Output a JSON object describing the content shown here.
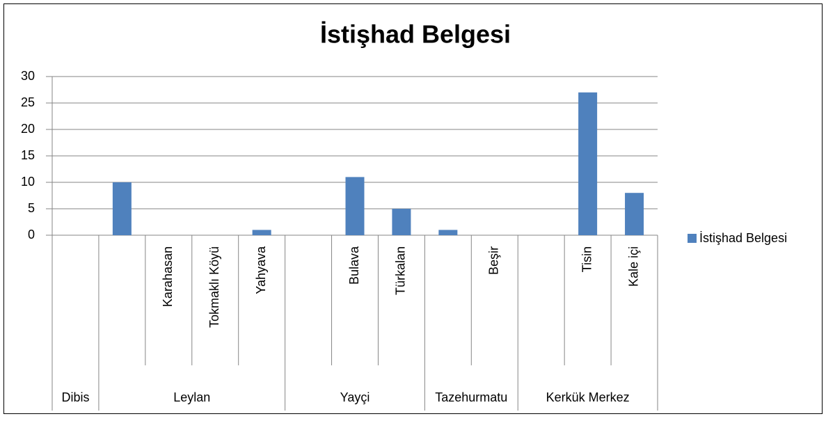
{
  "chart_data": {
    "type": "bar",
    "title": "İstişhad Belgesi",
    "series_name": "İstişhad Belgesi",
    "color": "#4f81bd",
    "groups": [
      {
        "name": "Dibis",
        "categories": [
          null
        ],
        "values": [
          0
        ]
      },
      {
        "name": "Leylan",
        "categories": [
          null,
          "Karahasan",
          "Tokmaklı Köyü",
          "Yahyava"
        ],
        "values": [
          10,
          0,
          0,
          1
        ]
      },
      {
        "name": "Yayçi",
        "categories": [
          null,
          "Bulava",
          "Türkalan"
        ],
        "values": [
          0,
          11,
          5
        ]
      },
      {
        "name": "Tazehurmatu",
        "categories": [
          null,
          "Beşir"
        ],
        "values": [
          1,
          0
        ]
      },
      {
        "name": "Kerkük Merkez",
        "categories": [
          null,
          "Tisin",
          "Kale içi"
        ],
        "values": [
          0,
          27,
          8
        ]
      }
    ],
    "ylim": [
      0,
      30
    ],
    "yticks": [
      0,
      5,
      10,
      15,
      20,
      25,
      30
    ],
    "grid": true,
    "legend": "right"
  }
}
